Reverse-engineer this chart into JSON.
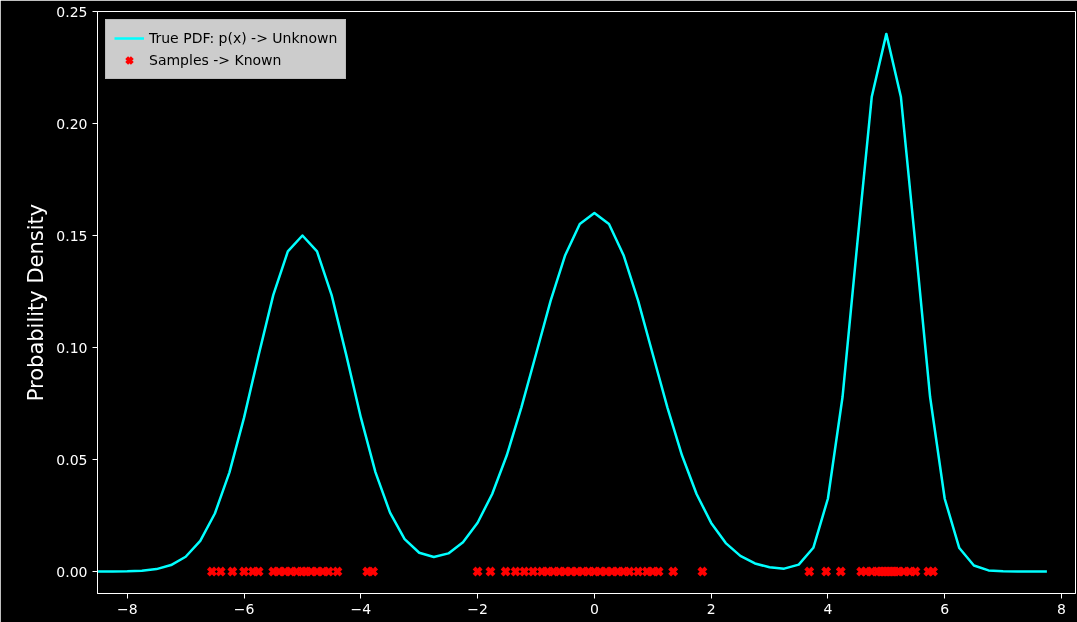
{
  "chart_data": {
    "type": "line",
    "ylabel": "Probability Density",
    "xlim": [
      -8.51,
      8.24
    ],
    "ylim": [
      -0.0098,
      0.25
    ],
    "xticks": [
      -8,
      -6,
      -4,
      -2,
      0,
      2,
      4,
      6,
      8
    ],
    "yticks": [
      {
        "value": 0,
        "label": "0.00"
      },
      {
        "value": 0.05,
        "label": "0.05"
      },
      {
        "value": 0.1,
        "label": "0.10"
      },
      {
        "value": 0.15,
        "label": "0.15"
      },
      {
        "value": 0.2,
        "label": "0.20"
      },
      {
        "value": 0.25,
        "label": "0.25"
      }
    ],
    "grid": false,
    "legend": "top left",
    "series": [
      {
        "name": "True PDF: p(x) -> Unknown",
        "color": "#00ffff",
        "line_style": "solid",
        "marker": "none",
        "x": [
          -8.5,
          -8.25,
          -8,
          -7.75,
          -7.5,
          -7.25,
          -7,
          -6.75,
          -6.5,
          -6.25,
          -6,
          -5.75,
          -5.5,
          -5.25,
          -5,
          -4.75,
          -4.5,
          -4.25,
          -4,
          -3.75,
          -3.5,
          -3.25,
          -3,
          -2.75,
          -2.5,
          -2.25,
          -2,
          -1.75,
          -1.5,
          -1.25,
          -1,
          -0.75,
          -0.5,
          -0.25,
          0,
          0.25,
          0.5,
          0.75,
          1,
          1.25,
          1.5,
          1.75,
          2,
          2.25,
          2.5,
          2.75,
          3,
          3.25,
          3.5,
          3.75,
          4,
          4.25,
          4.5,
          4.75,
          5,
          5.25,
          5.5,
          5.75,
          6,
          6.25,
          6.5,
          6.75,
          7,
          7.25,
          7.5,
          7.75
        ],
        "values": [
          0,
          0,
          0.0001,
          0.0004,
          0.0011,
          0.0029,
          0.0066,
          0.0137,
          0.0259,
          0.0443,
          0.0687,
          0.0967,
          0.1234,
          0.1429,
          0.15,
          0.1429,
          0.1234,
          0.0967,
          0.0688,
          0.0444,
          0.0263,
          0.0145,
          0.0084,
          0.0065,
          0.0081,
          0.0131,
          0.0218,
          0.0346,
          0.0519,
          0.0733,
          0.097,
          0.1208,
          0.1412,
          0.1551,
          0.16,
          0.1551,
          0.1412,
          0.1208,
          0.097,
          0.0733,
          0.0519,
          0.0346,
          0.0217,
          0.0127,
          0.007,
          0.0036,
          0.0019,
          0.0013,
          0.0031,
          0.0106,
          0.0326,
          0.0779,
          0.1456,
          0.2118,
          0.24,
          0.2118,
          0.1456,
          0.0779,
          0.0325,
          0.0105,
          0.0027,
          0.0005,
          0.0001,
          0,
          0,
          0
        ]
      },
      {
        "name": "Samples -> Known",
        "type": "scatter",
        "color": "#ff0000",
        "marker": "cross",
        "x": [
          -6.55,
          -6.4,
          -6.2,
          -6.0,
          -5.85,
          -5.75,
          -5.5,
          -5.4,
          -5.3,
          -5.2,
          -5.1,
          -5.0,
          -4.95,
          -4.85,
          -4.75,
          -4.65,
          -4.55,
          -4.4,
          -3.89,
          -3.79,
          -2.0,
          -1.78,
          -1.52,
          -1.35,
          -1.2,
          -1.05,
          -0.9,
          -0.8,
          -0.7,
          -0.6,
          -0.5,
          -0.4,
          -0.3,
          -0.2,
          -0.1,
          0,
          0.1,
          0.2,
          0.3,
          0.4,
          0.5,
          0.6,
          0.75,
          0.9,
          1.0,
          1.1,
          1.35,
          1.85,
          3.68,
          3.97,
          4.22,
          4.57,
          4.65,
          4.75,
          4.85,
          4.9,
          4.95,
          5.0,
          5.05,
          5.1,
          5.15,
          5.2,
          5.3,
          5.4,
          5.5,
          5.72,
          5.8
        ],
        "values": [
          0,
          0,
          0,
          0,
          0,
          0,
          0,
          0,
          0,
          0,
          0,
          0,
          0,
          0,
          0,
          0,
          0,
          0,
          0,
          0,
          0,
          0,
          0,
          0,
          0,
          0,
          0,
          0,
          0,
          0,
          0,
          0,
          0,
          0,
          0,
          0,
          0,
          0,
          0,
          0,
          0,
          0,
          0,
          0,
          0,
          0,
          0,
          0,
          0,
          0,
          0,
          0,
          0,
          0,
          0,
          0,
          0,
          0,
          0,
          0,
          0,
          0,
          0,
          0,
          0,
          0,
          0
        ]
      }
    ]
  }
}
